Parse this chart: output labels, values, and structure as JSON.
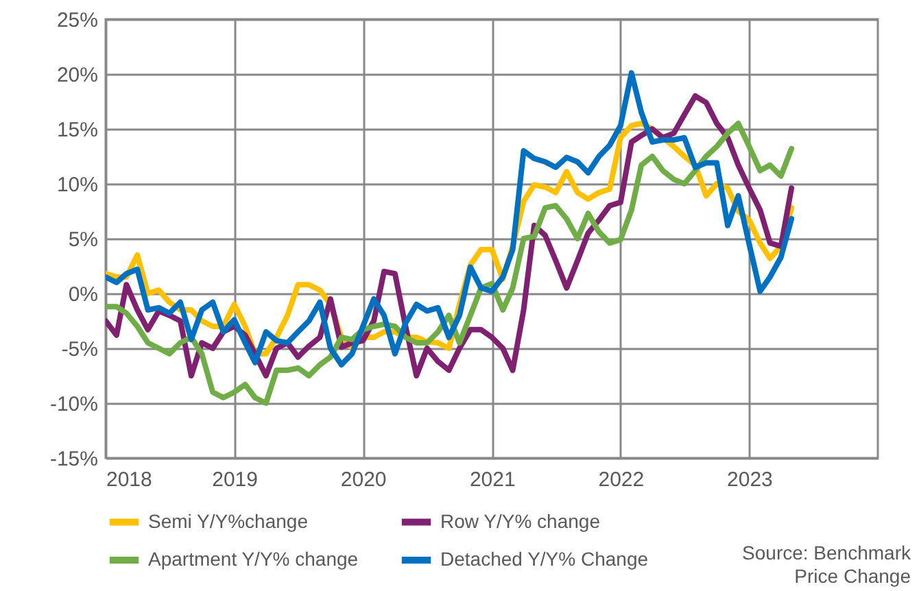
{
  "chart_data": {
    "type": "line",
    "x": [
      "2018-01",
      "2018-02",
      "2018-03",
      "2018-04",
      "2018-05",
      "2018-06",
      "2018-07",
      "2018-08",
      "2018-09",
      "2018-10",
      "2018-11",
      "2018-12",
      "2019-01",
      "2019-02",
      "2019-03",
      "2019-04",
      "2019-05",
      "2019-06",
      "2019-07",
      "2019-08",
      "2019-09",
      "2019-10",
      "2019-11",
      "2019-12",
      "2020-01",
      "2020-02",
      "2020-03",
      "2020-04",
      "2020-05",
      "2020-06",
      "2020-07",
      "2020-08",
      "2020-09",
      "2020-10",
      "2020-11",
      "2020-12",
      "2021-01",
      "2021-02",
      "2021-03",
      "2021-04",
      "2021-05",
      "2021-06",
      "2021-07",
      "2021-08",
      "2021-09",
      "2021-10",
      "2021-11",
      "2021-12",
      "2022-01",
      "2022-02",
      "2022-03",
      "2022-04",
      "2022-05",
      "2022-06",
      "2022-07",
      "2022-08",
      "2022-09",
      "2022-10",
      "2022-11",
      "2022-12",
      "2023-01",
      "2023-02",
      "2023-03",
      "2023-04",
      "2023-05"
    ],
    "series": [
      {
        "name": "Semi Y/Y%change",
        "color": "#ffc000",
        "values": [
          1.8,
          1.5,
          1.5,
          3.5,
          0,
          0.3,
          -0.8,
          -1.5,
          -1.5,
          -2.5,
          -3,
          -3,
          -1,
          -3,
          -5.5,
          -5.5,
          -4,
          -2,
          0.8,
          0.8,
          0.3,
          -1,
          -4,
          -5,
          -4,
          -4,
          -3.5,
          -3.5,
          -4,
          -4,
          -4.4,
          -4.5,
          -5,
          -1,
          2.6,
          4,
          4,
          1.3,
          4.3,
          8.4,
          9.9,
          9.7,
          9.2,
          11.1,
          9.2,
          8.6,
          9.2,
          9.5,
          14.2,
          15.3,
          15.5,
          15,
          14.2,
          13.4,
          12.5,
          11.7,
          8.9,
          10,
          9.6,
          7.5,
          6.7,
          4.6,
          3.2,
          4.3,
          7.8
        ]
      },
      {
        "name": "Row Y/Y% change",
        "color": "#7f2170",
        "values": [
          -2.5,
          -3.8,
          0.8,
          -1.5,
          -3.3,
          -1.6,
          -2,
          -2.5,
          -7.5,
          -4.5,
          -5,
          -3.5,
          -3,
          -3.8,
          -5.5,
          -7.5,
          -5,
          -4.5,
          -5.8,
          -4.8,
          -4,
          -0.5,
          -4.9,
          -4.5,
          -4.3,
          -2.5,
          2,
          1.8,
          -3,
          -7.5,
          -5,
          -6.2,
          -7,
          -5,
          -3.3,
          -3.3,
          -4,
          -5,
          -7,
          -1.5,
          6.2,
          5.3,
          3,
          0.5,
          3,
          5.5,
          6.7,
          8,
          8.3,
          13.8,
          14.4,
          15,
          14.2,
          14.6,
          16.3,
          18,
          17.4,
          15.5,
          14.2,
          11.7,
          9.6,
          7.6,
          4.6,
          4.3,
          9.6
        ]
      },
      {
        "name": "Apartment Y/Y% change",
        "color": "#70ad47",
        "values": [
          -1.2,
          -1.2,
          -1.8,
          -3,
          -4.5,
          -5,
          -5.5,
          -4.5,
          -4,
          -5.5,
          -9,
          -9.5,
          -9,
          -8.3,
          -9.5,
          -10,
          -7,
          -7,
          -6.8,
          -7.5,
          -6.5,
          -5.8,
          -4,
          -4.2,
          -3.3,
          -3,
          -2.8,
          -3,
          -4,
          -4.5,
          -4.5,
          -3.5,
          -2,
          -4.5,
          -2,
          0.5,
          0.9,
          -1.5,
          0.5,
          5,
          5.2,
          7.8,
          8,
          6.8,
          5,
          7.3,
          5.6,
          4.6,
          4.9,
          7.6,
          11.7,
          12.5,
          11.2,
          10.4,
          10,
          11.2,
          12.5,
          13.4,
          14.6,
          15.5,
          13.4,
          11.2,
          11.7,
          10.7,
          13.2
        ]
      },
      {
        "name": "Detached Y/Y% Change",
        "color": "#0070c0",
        "values": [
          1.5,
          1,
          1.8,
          2.2,
          -1.5,
          -1.3,
          -1.8,
          -0.8,
          -4.2,
          -1.5,
          -0.8,
          -3.5,
          -2.4,
          -4.5,
          -6.3,
          -3.5,
          -4.3,
          -4.5,
          -3.5,
          -2.5,
          -0.8,
          -5,
          -6.5,
          -5.5,
          -3,
          -0.5,
          -2,
          -5.5,
          -2.7,
          -1,
          -1.6,
          -1.3,
          -4,
          -2,
          2.4,
          0.5,
          0.2,
          1.5,
          4,
          13,
          12.3,
          12,
          11.5,
          12.4,
          12,
          11,
          12.5,
          13.5,
          15.3,
          20.1,
          16.5,
          13.8,
          14,
          14,
          14.2,
          11.5,
          11.9,
          11.9,
          6.2,
          8.9,
          4.5,
          0.2,
          1.5,
          3.3,
          6.8
        ]
      }
    ],
    "xlim": [
      "2018-01",
      "2024-01"
    ],
    "xticks": [
      "2018",
      "2019",
      "2020",
      "2021",
      "2022",
      "2023"
    ],
    "ylim": [
      -15,
      25
    ],
    "yticks": [
      {
        "value": -15,
        "label": "-15%"
      },
      {
        "value": -10,
        "label": "-10%"
      },
      {
        "value": -5,
        "label": "-5%"
      },
      {
        "value": 0,
        "label": "0%"
      },
      {
        "value": 5,
        "label": "5%"
      },
      {
        "value": 10,
        "label": "10%"
      },
      {
        "value": 15,
        "label": "15%"
      },
      {
        "value": 20,
        "label": "20%"
      },
      {
        "value": 25,
        "label": "25%"
      }
    ],
    "grid": true,
    "legend": "bottom",
    "marker": "none",
    "line_style": "solid",
    "annotations": [
      "Source: Benchmark Price Change"
    ]
  }
}
